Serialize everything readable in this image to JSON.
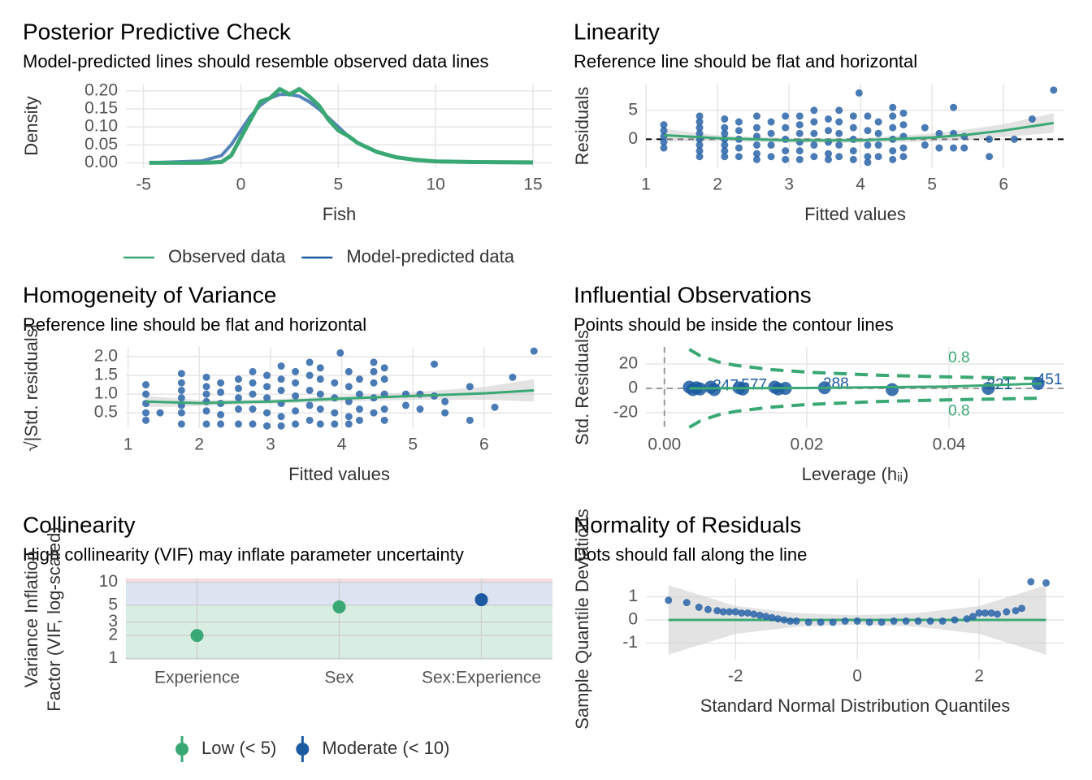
{
  "chart_data": [
    {
      "type": "line",
      "title": "Posterior Predictive Check",
      "subtitle": "Model-predicted lines should resemble observed data lines",
      "xlabel": "Fish",
      "ylabel": "Density",
      "xlim": [
        -5.9,
        16
      ],
      "ylim": [
        -0.015,
        0.22
      ],
      "xticks": [
        -5,
        0,
        5,
        10,
        15
      ],
      "yticks": [
        {
          "value": 0,
          "label": "0.00"
        },
        {
          "value": 0.05,
          "label": "0.05"
        },
        {
          "value": 0.1,
          "label": "0.10"
        },
        {
          "value": 0.15,
          "label": "0.15"
        },
        {
          "value": 0.2,
          "label": "0.20"
        }
      ],
      "grid": true,
      "legend": "bottom",
      "x": [
        -4.7,
        -2,
        -1,
        -0.5,
        0,
        0.5,
        1,
        1.5,
        2,
        2.5,
        3,
        3.5,
        4,
        4.5,
        5,
        5.5,
        6,
        7,
        8,
        9,
        10,
        12,
        15
      ],
      "series": [
        {
          "name": "Observed data",
          "color": "#3aa874",
          "values": [
            0,
            0,
            0.002,
            0.02,
            0.07,
            0.12,
            0.17,
            0.18,
            0.205,
            0.19,
            0.205,
            0.185,
            0.16,
            0.12,
            0.09,
            0.075,
            0.055,
            0.03,
            0.015,
            0.008,
            0.004,
            0.002,
            0.001
          ]
        },
        {
          "name": "Model-predicted data",
          "color": "#1b5aa0",
          "values": [
            0,
            0.005,
            0.02,
            0.05,
            0.09,
            0.13,
            0.16,
            0.18,
            0.19,
            0.19,
            0.185,
            0.17,
            0.15,
            0.125,
            0.1,
            0.075,
            0.055,
            0.03,
            0.015,
            0.007,
            0.003,
            0.001,
            0
          ]
        }
      ]
    },
    {
      "type": "scatter",
      "title": "Linearity",
      "subtitle": "Reference line should be flat and horizontal",
      "xlabel": "Fitted values",
      "ylabel": "Residuals",
      "xlim": [
        1,
        6.85
      ],
      "ylim": [
        -5,
        9.6
      ],
      "xticks": [
        1,
        2,
        3,
        4,
        5,
        6
      ],
      "yticks": [
        0,
        5
      ],
      "grid": true,
      "hlines": [
        {
          "y": 0,
          "color": "#000000",
          "dash": true
        }
      ],
      "series": [
        {
          "kind": "band",
          "color": "#cccccc",
          "x": [
            1.25,
            2,
            3,
            4,
            5,
            5.5,
            6,
            6.7
          ],
          "lower": [
            -0.4,
            -0.3,
            -0.6,
            -0.6,
            -0.4,
            -0.1,
            0.4,
            1.1
          ],
          "upper": [
            1.8,
            0.7,
            0.2,
            0.2,
            1.0,
            1.7,
            2.6,
            4.5
          ]
        },
        {
          "kind": "points",
          "color": "#2a64a8",
          "x": [
            1.25,
            1.25,
            1.25,
            1.25,
            1.25,
            1.75,
            1.75,
            1.75,
            1.75,
            1.75,
            1.75,
            1.75,
            1.75,
            2.1,
            2.1,
            2.1,
            2.1,
            2.1,
            2.1,
            2.1,
            2.3,
            2.3,
            2.3,
            2.3,
            2.3,
            2.55,
            2.55,
            2.55,
            2.55,
            2.55,
            2.55,
            2.75,
            2.75,
            2.75,
            2.75,
            2.95,
            2.95,
            2.95,
            2.95,
            2.95,
            3.15,
            3.15,
            3.15,
            3.15,
            3.15,
            3.15,
            3.35,
            3.35,
            3.35,
            3.35,
            3.35,
            3.55,
            3.55,
            3.55,
            3.55,
            3.55,
            3.7,
            3.7,
            3.7,
            3.7,
            3.7,
            3.9,
            3.9,
            3.9,
            3.9,
            3.9,
            3.98,
            4.1,
            4.1,
            4.1,
            4.1,
            4.1,
            4.25,
            4.25,
            4.25,
            4.25,
            4.45,
            4.45,
            4.45,
            4.45,
            4.45,
            4.45,
            4.6,
            4.6,
            4.6,
            4.6,
            4.6,
            4.9,
            4.9,
            5.1,
            5.1,
            5.3,
            5.3,
            5.3,
            5.45,
            5.45,
            5.8,
            5.8,
            6.15,
            6.4,
            6.7
          ],
          "values": [
            2.5,
            1.5,
            0.5,
            -0.5,
            -1.5,
            4,
            3,
            2,
            1,
            0,
            -1,
            -2,
            -3,
            3.5,
            2,
            1,
            0,
            -1,
            -2,
            -3,
            3,
            1.5,
            0,
            -1.5,
            -3,
            4,
            2,
            0.5,
            -1,
            -2.5,
            -3.5,
            3,
            1,
            -1,
            -3,
            4,
            2,
            0,
            -2,
            -3.5,
            4,
            2.5,
            1,
            -0.5,
            -2,
            -3.5,
            5,
            3,
            1,
            -1,
            -3,
            3.5,
            1.5,
            -0.5,
            -2.5,
            -3.5,
            5,
            3,
            1,
            -1,
            -3,
            4,
            2,
            0,
            -2,
            -3.5,
            8,
            4,
            1.5,
            -1,
            -3,
            -4,
            3,
            1,
            -1,
            -3,
            5.5,
            4,
            2,
            0,
            -2,
            -3.5,
            4.5,
            2.5,
            0.5,
            -1.5,
            -3,
            2,
            -1,
            1,
            -1.5,
            5.5,
            1,
            -1.5,
            0.5,
            -1.5,
            0,
            -3,
            0,
            3.5,
            8.5
          ]
        },
        {
          "kind": "line",
          "color": "#3aa874",
          "x": [
            1.25,
            2,
            3,
            4,
            5,
            5.5,
            6,
            6.7
          ],
          "values": [
            0.7,
            0.2,
            -0.2,
            -0.2,
            0.3,
            0.8,
            1.5,
            2.8
          ]
        }
      ]
    },
    {
      "type": "scatter",
      "title": "Homogeneity of Variance",
      "subtitle": "Reference line should be flat and horizontal",
      "xlabel": "Fitted values",
      "ylabel": "√|Std. residuals|",
      "xlim": [
        0.97,
        6.96
      ],
      "ylim": [
        0.09,
        2.26
      ],
      "xticks": [
        1,
        2,
        3,
        4,
        5,
        6
      ],
      "yticks": [
        0.5,
        {
          "value": 1,
          "label": "1.0"
        },
        1.5,
        {
          "value": 2,
          "label": "2.0"
        }
      ],
      "grid": true,
      "series": [
        {
          "kind": "band",
          "color": "#cccccc",
          "x": [
            1.25,
            2,
            3,
            4,
            5,
            6,
            6.7
          ],
          "lower": [
            0.65,
            0.68,
            0.74,
            0.8,
            0.85,
            0.85,
            0.8
          ],
          "upper": [
            0.95,
            0.84,
            0.86,
            0.96,
            1.05,
            1.19,
            1.4
          ]
        },
        {
          "kind": "points",
          "color": "#2a64a8",
          "x": [
            1.25,
            1.25,
            1.25,
            1.25,
            1.25,
            1.45,
            1.75,
            1.75,
            1.75,
            1.75,
            1.75,
            1.75,
            1.75,
            2.1,
            2.1,
            2.1,
            2.1,
            2.1,
            2.1,
            2.3,
            2.3,
            2.3,
            2.3,
            2.3,
            2.55,
            2.55,
            2.55,
            2.55,
            2.55,
            2.75,
            2.75,
            2.75,
            2.75,
            2.75,
            2.95,
            2.95,
            2.95,
            2.95,
            2.95,
            3.15,
            3.15,
            3.15,
            3.15,
            3.15,
            3.15,
            3.35,
            3.35,
            3.35,
            3.35,
            3.35,
            3.55,
            3.55,
            3.55,
            3.55,
            3.55,
            3.7,
            3.7,
            3.7,
            3.7,
            3.7,
            3.98,
            3.9,
            3.9,
            3.9,
            3.9,
            4.1,
            4.1,
            4.1,
            4.1,
            4.1,
            4.25,
            4.25,
            4.25,
            4.25,
            4.45,
            4.45,
            4.45,
            4.45,
            4.45,
            4.6,
            4.6,
            4.6,
            4.6,
            4.6,
            4.9,
            4.9,
            5.1,
            5.1,
            5.3,
            5.3,
            5.45,
            5.45,
            5.8,
            5.8,
            6.15,
            6.4,
            6.7
          ],
          "values": [
            1.25,
            1.0,
            0.75,
            0.5,
            0.3,
            0.5,
            1.55,
            1.3,
            1.1,
            0.9,
            0.7,
            0.5,
            0.2,
            1.45,
            1.2,
            1.0,
            0.8,
            0.55,
            0.2,
            1.3,
            1.05,
            0.75,
            0.45,
            0.2,
            1.4,
            1.15,
            0.9,
            0.6,
            0.2,
            1.6,
            1.3,
            1.0,
            0.6,
            0.2,
            1.5,
            1.2,
            0.9,
            0.5,
            0.15,
            1.75,
            1.4,
            1.1,
            0.75,
            0.4,
            0.15,
            1.6,
            1.3,
            0.95,
            0.55,
            0.2,
            1.85,
            1.5,
            1.1,
            0.7,
            0.3,
            1.7,
            1.4,
            1.0,
            0.6,
            0.2,
            2.1,
            1.3,
            0.9,
            0.5,
            0.2,
            1.6,
            1.2,
            0.8,
            0.4,
            0.2,
            1.4,
            1.0,
            0.6,
            0.3,
            1.85,
            1.6,
            1.3,
            0.9,
            0.5,
            1.7,
            1.4,
            1.0,
            0.6,
            0.3,
            1.0,
            0.7,
            1.0,
            0.6,
            1.8,
            0.95,
            0.8,
            0.5,
            1.2,
            0.3,
            0.65,
            1.45,
            2.15
          ]
        },
        {
          "kind": "line",
          "color": "#3aa874",
          "x": [
            1.25,
            2,
            3,
            4,
            5,
            6,
            6.7
          ],
          "values": [
            0.8,
            0.76,
            0.8,
            0.88,
            0.95,
            1.02,
            1.1
          ]
        }
      ]
    },
    {
      "type": "scatter",
      "title": "Influential Observations",
      "subtitle": "Points should be inside the contour lines",
      "xlabel": "Leverage (hᵢᵢ)",
      "ylabel": "Std. Residuals",
      "xlim": [
        -0.0026,
        0.0562
      ],
      "ylim": [
        -32.7,
        34
      ],
      "xticks": [
        {
          "value": 0,
          "label": "0.00"
        },
        {
          "value": 0.02,
          "label": "0.02"
        },
        {
          "value": 0.04,
          "label": "0.04"
        }
      ],
      "yticks": [
        -20,
        0,
        20
      ],
      "grid": true,
      "hlines": [
        {
          "y": 0,
          "color": "#999999",
          "dash": true
        }
      ],
      "vlines": [
        {
          "x": 0,
          "color": "#999999",
          "dash": true
        }
      ],
      "series": [
        {
          "kind": "line",
          "dash": true,
          "color": "#3aa874",
          "x": [
            0.0035,
            0.005,
            0.0075,
            0.01,
            0.015,
            0.02,
            0.03,
            0.04,
            0.053
          ],
          "values": [
            32.0,
            26.8,
            21.8,
            18.9,
            15.4,
            13.3,
            10.8,
            9.4,
            8.0
          ]
        },
        {
          "kind": "line",
          "dash": true,
          "color": "#3aa874",
          "x": [
            0.0035,
            0.005,
            0.0075,
            0.01,
            0.015,
            0.02,
            0.03,
            0.04,
            0.053
          ],
          "values": [
            -32.0,
            -26.8,
            -21.8,
            -18.9,
            -15.4,
            -13.3,
            -10.8,
            -9.4,
            -8.0
          ]
        },
        {
          "kind": "points",
          "color": "#1b5aa0",
          "size": 8,
          "x": [
            0.0035,
            0.004,
            0.0045,
            0.005,
            0.0065,
            0.007,
            0.0105,
            0.011,
            0.0155,
            0.016,
            0.017,
            0.0225,
            0.032,
            0.0455,
            0.0525
          ],
          "values": [
            1,
            -1,
            0.5,
            -0.5,
            1,
            -1,
            0.5,
            -0.5,
            1,
            -0.5,
            0,
            0.5,
            -1,
            0,
            4
          ],
          "labels": [
            null,
            null,
            null,
            null,
            null,
            "247",
            null,
            "577",
            null,
            null,
            null,
            "288",
            null,
            "221",
            "451"
          ]
        },
        {
          "kind": "line",
          "color": "#3aa874",
          "x": [
            0.0035,
            0.02,
            0.04,
            0.053
          ],
          "values": [
            0,
            0.3,
            1.5,
            4
          ]
        }
      ],
      "annotations": [
        {
          "x": 0.0414,
          "y": 24.7,
          "text": "0.8",
          "color": "#3aa874"
        },
        {
          "x": 0.0414,
          "y": -19,
          "text": "0.8",
          "color": "#3aa874"
        }
      ]
    },
    {
      "type": "dot",
      "title": "Collinearity",
      "subtitle": "High collinearity (VIF) may inflate parameter uncertainty",
      "ylabel": [
        "Variance Inflation",
        "Factor (VIF, log-scaled)"
      ],
      "log_y": true,
      "ylim": [
        0.96,
        11.2
      ],
      "yticks": [
        1,
        2,
        3,
        5,
        10
      ],
      "grid": true,
      "legend": "bottom",
      "zones": [
        {
          "from": 0.96,
          "to": 5,
          "color": "#d9eee3"
        },
        {
          "from": 5,
          "to": 10,
          "color": "#dce4f1"
        },
        {
          "from": 10,
          "to": 11.2,
          "color": "#f6dde2"
        }
      ],
      "categories": [
        "Experience",
        "Sex",
        "Sex:Experience"
      ],
      "series": [
        {
          "name": "Low (< 5)",
          "color": "#3aa874",
          "values": [
            2.0,
            4.75,
            null
          ]
        },
        {
          "name": "Moderate (< 10)",
          "color": "#1b5aa0",
          "values": [
            null,
            null,
            5.9
          ]
        }
      ]
    },
    {
      "type": "scatter",
      "title": "Normality of Residuals",
      "subtitle": "Dots should fall along the line",
      "xlabel": "Standard Normal Distribution Quantiles",
      "ylabel": "Sample Quantile Deviations",
      "xlim": [
        -3.47,
        3.4
      ],
      "ylim": [
        -1.72,
        1.79
      ],
      "xticks": [
        -2,
        0,
        2
      ],
      "yticks": [
        -1,
        0,
        1
      ],
      "grid": true,
      "series": [
        {
          "kind": "band",
          "color": "#cccccc",
          "x": [
            -3.1,
            -2,
            -1,
            0,
            1,
            2,
            3.1
          ],
          "lower": [
            -1.5,
            -0.6,
            -0.3,
            -0.2,
            -0.3,
            -0.6,
            -1.5
          ],
          "upper": [
            1.5,
            0.6,
            0.3,
            0.2,
            0.3,
            0.6,
            1.5
          ]
        },
        {
          "kind": "line",
          "color": "#3aa874",
          "x": [
            -3.1,
            3.1
          ],
          "values": [
            0,
            0
          ]
        },
        {
          "kind": "points",
          "color": "#2a64a8",
          "x": [
            -3.1,
            -2.8,
            -2.6,
            -2.45,
            -2.3,
            -2.2,
            -2.1,
            -2.0,
            -1.9,
            -1.8,
            -1.7,
            -1.6,
            -1.5,
            -1.4,
            -1.3,
            -1.2,
            -1.1,
            -1.0,
            -0.8,
            -0.6,
            -0.4,
            -0.2,
            0,
            0.2,
            0.4,
            0.6,
            0.8,
            1.0,
            1.2,
            1.4,
            1.6,
            1.8,
            1.9,
            2.0,
            2.1,
            2.2,
            2.3,
            2.45,
            2.6,
            2.7,
            2.85,
            3.1
          ],
          "values": [
            0.85,
            0.75,
            0.55,
            0.45,
            0.4,
            0.35,
            0.35,
            0.35,
            0.3,
            0.3,
            0.25,
            0.2,
            0.15,
            0.1,
            0.05,
            0,
            -0.05,
            -0.05,
            -0.1,
            -0.1,
            -0.1,
            -0.05,
            -0.05,
            -0.1,
            -0.1,
            -0.05,
            -0.05,
            -0.05,
            -0.05,
            -0.05,
            0,
            0.05,
            0.15,
            0.3,
            0.3,
            0.3,
            0.25,
            0.35,
            0.4,
            0.5,
            1.65,
            1.6
          ]
        }
      ]
    }
  ]
}
